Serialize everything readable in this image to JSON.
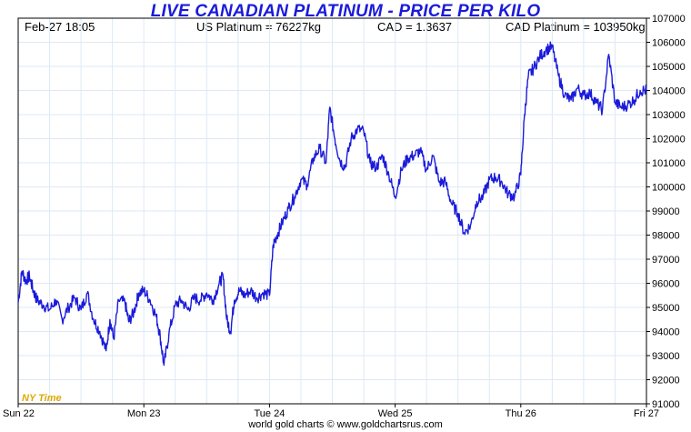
{
  "header": {
    "title": "LIVE CANADIAN PLATINUM - PRICE PER KILO",
    "timestamp": "Feb-27  18:05",
    "us_platinum": "US Platinum = 76227kg",
    "cad_rate": "CAD = 1.3637",
    "cad_platinum": "CAD Platinum = 103950kg"
  },
  "footer": {
    "credit": "world gold charts © www.goldchartsrus.com"
  },
  "timezone_label": "NY Time",
  "colors": {
    "line": "#1a1adb",
    "title": "#1a1adb",
    "grid": "#dde9f5",
    "timezone": "#e0a800"
  },
  "chart_data": {
    "type": "line",
    "title": "LIVE CANADIAN PLATINUM - PRICE PER KILO",
    "xlabel": "",
    "ylabel": "",
    "ylim": [
      91000,
      107000
    ],
    "yticks": [
      "91000",
      "92000",
      "93000",
      "94000",
      "95000",
      "96000",
      "97000",
      "98000",
      "99000",
      "100000",
      "101000",
      "102000",
      "103000",
      "104000",
      "105000",
      "106000",
      "107000"
    ],
    "xlim": [
      0,
      5.0
    ],
    "xticks": [
      {
        "label": "Sun 22",
        "x": 0
      },
      {
        "label": "Mon 23",
        "x": 1
      },
      {
        "label": "Tue 24",
        "x": 2
      },
      {
        "label": "Wed 25",
        "x": 3
      },
      {
        "label": "Thu 26",
        "x": 4
      },
      {
        "label": "Fri 27",
        "x": 5
      }
    ],
    "grid": true,
    "series": [
      {
        "x": [
          0.0,
          0.03,
          0.06,
          0.09,
          0.12,
          0.15,
          0.2,
          0.25,
          0.3,
          0.35,
          0.4,
          0.45,
          0.5,
          0.55,
          0.6,
          0.65,
          0.7,
          0.73,
          0.76,
          0.8,
          0.85,
          0.88,
          0.92,
          0.96,
          1.0,
          1.05,
          1.1,
          1.13,
          1.16,
          1.2,
          1.25,
          1.3,
          1.35,
          1.4,
          1.45,
          1.5,
          1.55,
          1.6,
          1.63,
          1.66,
          1.69,
          1.72,
          1.76,
          1.8,
          1.85,
          1.9,
          1.95,
          2.0,
          2.03,
          2.06,
          2.1,
          2.15,
          2.2,
          2.25,
          2.3,
          2.35,
          2.4,
          2.45,
          2.48,
          2.52,
          2.56,
          2.6,
          2.65,
          2.7,
          2.75,
          2.8,
          2.85,
          2.9,
          2.95,
          3.0,
          3.05,
          3.1,
          3.15,
          3.2,
          3.25,
          3.3,
          3.35,
          3.4,
          3.45,
          3.5,
          3.55,
          3.6,
          3.65,
          3.7,
          3.75,
          3.8,
          3.85,
          3.9,
          3.95,
          4.0,
          4.03,
          4.06,
          4.1,
          4.15,
          4.2,
          4.25,
          4.3,
          4.35,
          4.4,
          4.45,
          4.5,
          4.55,
          4.6,
          4.65,
          4.7,
          4.75,
          4.8,
          4.85,
          4.9,
          4.95,
          5.0
        ],
        "values": [
          95200,
          96500,
          96100,
          96300,
          95700,
          95300,
          95100,
          94900,
          95300,
          94500,
          95000,
          95400,
          94900,
          95600,
          94500,
          94000,
          93200,
          94500,
          93700,
          95300,
          95200,
          94400,
          94800,
          95600,
          95700,
          95300,
          94600,
          93800,
          92600,
          93900,
          95100,
          95300,
          94900,
          95400,
          95300,
          95600,
          95300,
          96000,
          96300,
          94500,
          94000,
          95300,
          95700,
          95500,
          95700,
          95400,
          95600,
          95500,
          97600,
          98000,
          98500,
          99100,
          99600,
          100300,
          100100,
          101200,
          101600,
          101000,
          103300,
          102000,
          101100,
          100800,
          102000,
          102400,
          102300,
          101000,
          100800,
          101300,
          100500,
          99600,
          100700,
          101200,
          101300,
          101500,
          100700,
          101300,
          100200,
          100200,
          99300,
          98900,
          98100,
          98400,
          99400,
          99600,
          100300,
          100400,
          100200,
          99700,
          99600,
          100500,
          103000,
          104600,
          104900,
          105400,
          105700,
          105800,
          104600,
          103800,
          103600,
          104100,
          103800,
          103900,
          103500,
          103200,
          105500,
          103500,
          103300,
          103400,
          103600,
          104000,
          104000
        ]
      }
    ]
  }
}
